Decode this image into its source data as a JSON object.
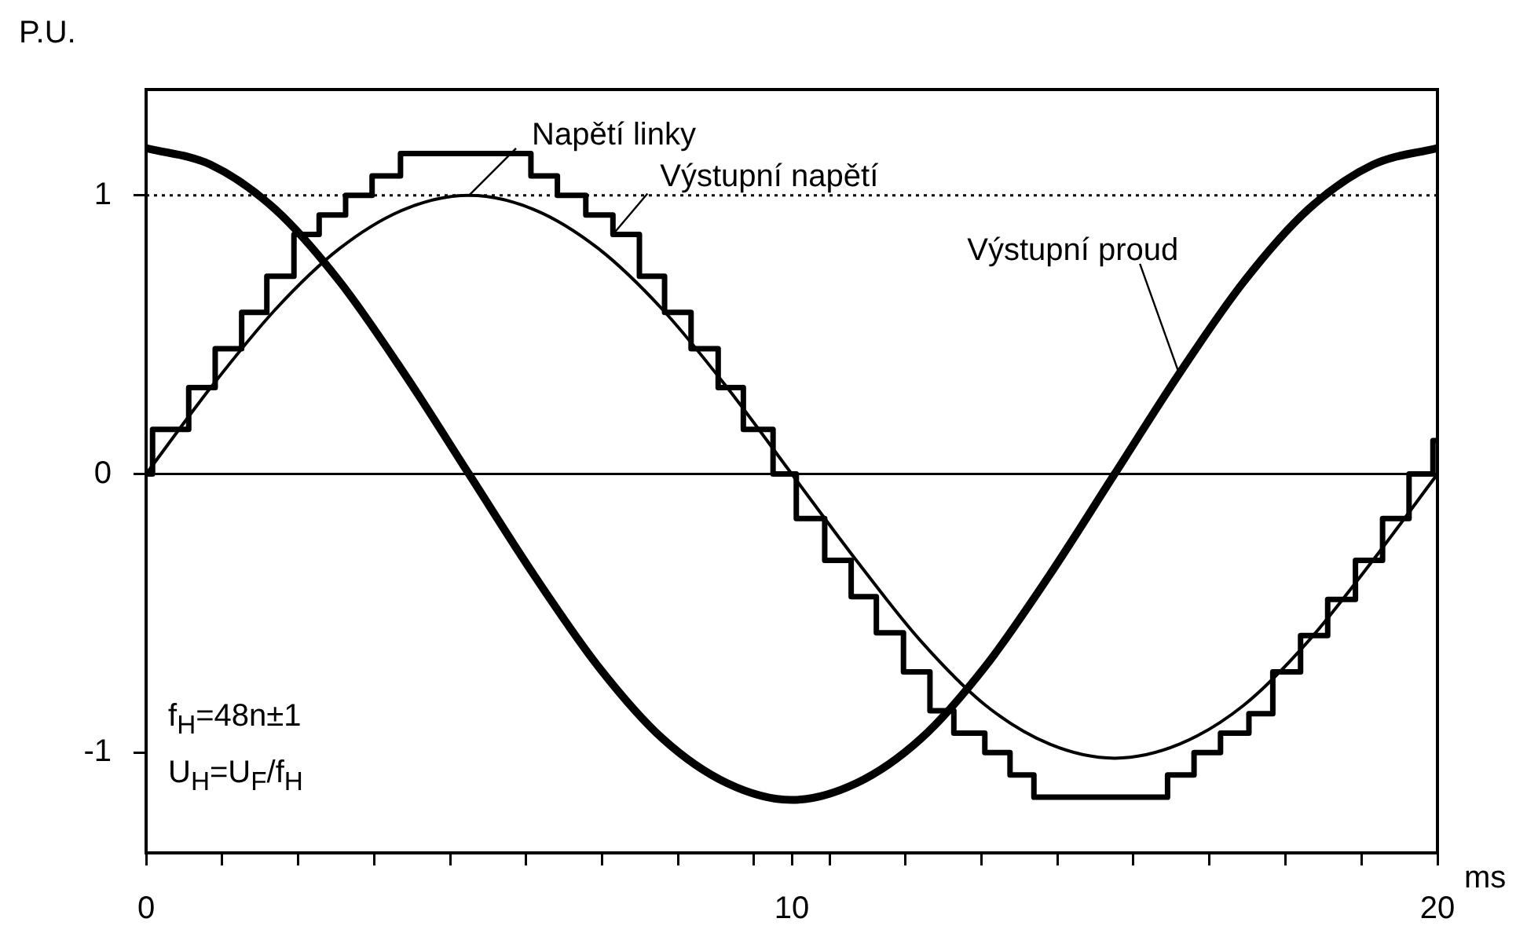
{
  "chart_data": {
    "type": "line",
    "ylabel": "P.U.",
    "xlabel": "ms",
    "annotations": [
      "f$_{H}$=48n±1",
      "U$_{H}$=U$_{F}$/f$_{H}$"
    ],
    "xlim": [
      0,
      20
    ],
    "ylim": [
      -1.36,
      1.38
    ],
    "xticks": [
      0,
      {
        "value": 1.18,
        "label": null
      },
      {
        "value": 2.35,
        "label": null
      },
      {
        "value": 3.53,
        "label": null
      },
      {
        "value": 4.71,
        "label": null
      },
      {
        "value": 5.88,
        "label": null
      },
      {
        "value": 7.06,
        "label": null
      },
      {
        "value": 8.24,
        "label": null
      },
      {
        "value": 9.41,
        "label": null
      },
      10,
      {
        "value": 10.59,
        "label": null
      },
      {
        "value": 11.76,
        "label": null
      },
      {
        "value": 12.94,
        "label": null
      },
      {
        "value": 14.12,
        "label": null
      },
      {
        "value": 15.29,
        "label": null
      },
      {
        "value": 16.47,
        "label": null
      },
      {
        "value": 17.65,
        "label": null
      },
      {
        "value": 18.82,
        "label": null
      },
      20
    ],
    "yticks": [
      -1,
      0,
      1
    ],
    "grid": false,
    "legend": false,
    "marker": "none",
    "ref_lines": [
      {
        "axis": "y",
        "value": 1,
        "line_style": "dotted",
        "color": "#000000"
      },
      {
        "axis": "y",
        "value": 0,
        "line_style": "solid",
        "color": "#000000"
      }
    ],
    "series": [
      {
        "name": "Napětí linky",
        "type": "line",
        "color": "#000000",
        "x": [
          0,
          1,
          2,
          3,
          4,
          5,
          6,
          7,
          8,
          9,
          10,
          11,
          12,
          13,
          14,
          15,
          16,
          17,
          18,
          19,
          20
        ],
        "values": [
          0,
          0.31,
          0.59,
          0.81,
          0.95,
          1.0,
          0.95,
          0.81,
          0.59,
          0.31,
          0,
          -0.31,
          -0.6,
          -0.83,
          -0.97,
          -1.02,
          -0.97,
          -0.83,
          -0.6,
          -0.31,
          0
        ]
      },
      {
        "name": "Výstupní napětí",
        "type": "step",
        "color": "#000000",
        "x": [
          0,
          0.1,
          0.66,
          1.07,
          1.48,
          1.87,
          2.29,
          2.68,
          3.09,
          3.5,
          3.94,
          5.96,
          6.37,
          6.81,
          7.23,
          7.64,
          8.03,
          8.44,
          8.86,
          9.25,
          9.71,
          10.07,
          10.51,
          10.92,
          11.31,
          11.73,
          12.14,
          12.51,
          12.99,
          13.38,
          13.75,
          15.82,
          16.23,
          16.64,
          17.08,
          17.45,
          17.88,
          18.3,
          18.73,
          19.15,
          19.56,
          19.93,
          20
        ],
        "values": [
          0,
          0.16,
          0.31,
          0.45,
          0.58,
          0.71,
          0.86,
          0.93,
          1.0,
          1.07,
          1.15,
          1.07,
          1.0,
          0.93,
          0.86,
          0.71,
          0.58,
          0.45,
          0.31,
          0.16,
          0,
          -0.16,
          -0.31,
          -0.44,
          -0.57,
          -0.71,
          -0.85,
          -0.93,
          -1.0,
          -1.08,
          -1.16,
          -1.08,
          -1.0,
          -0.93,
          -0.86,
          -0.71,
          -0.58,
          -0.45,
          -0.31,
          -0.16,
          0,
          0.12,
          0.12
        ]
      },
      {
        "name": "Výstupní proud",
        "type": "line",
        "color": "#000000",
        "x": [
          0,
          1,
          2,
          3,
          4,
          5,
          6,
          7,
          8,
          9,
          10,
          11,
          12,
          13,
          14,
          15,
          16,
          17,
          18,
          19,
          20
        ],
        "values": [
          1.17,
          1.11,
          0.95,
          0.69,
          0.36,
          0,
          -0.36,
          -0.69,
          -0.95,
          -1.11,
          -1.17,
          -1.11,
          -0.95,
          -0.69,
          -0.36,
          0,
          0.36,
          0.69,
          0.95,
          1.11,
          1.17
        ]
      }
    ]
  }
}
